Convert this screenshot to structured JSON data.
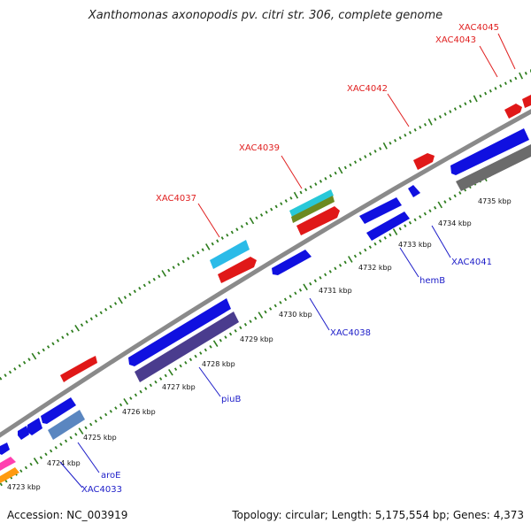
{
  "title": "Xanthomonas axonopodis pv. citri str. 306, complete genome",
  "accession": "Accession: NC_003919",
  "summary": "Topology: circular; Length: 5,175,554 bp; Genes: 4,373",
  "colors": {
    "backbone": "#8a8a8a",
    "tick": "#2e7d1e",
    "plus_label": "#e02020",
    "minus_label": "#1c1cc8"
  },
  "scale_labels": [
    {
      "name": "4723 kbp",
      "kbp": 4723
    },
    {
      "name": "4724 kbp",
      "kbp": 4724
    },
    {
      "name": "4725 kbp",
      "kbp": 4725
    },
    {
      "name": "4726 kbp",
      "kbp": 4726
    },
    {
      "name": "4727 kbp",
      "kbp": 4727
    },
    {
      "name": "4728 kbp",
      "kbp": 4728
    },
    {
      "name": "4729 kbp",
      "kbp": 4729
    },
    {
      "name": "4730 kbp",
      "kbp": 4730
    },
    {
      "name": "4731 kbp",
      "kbp": 4731
    },
    {
      "name": "4732 kbp",
      "kbp": 4732
    },
    {
      "name": "4733 kbp",
      "kbp": 4733
    },
    {
      "name": "4734 kbp",
      "kbp": 4734
    },
    {
      "name": "4735 kbp",
      "kbp": 4735
    }
  ],
  "plus_gene_labels": [
    "XAC4037",
    "XAC4039",
    "XAC4042",
    "XAC4043",
    "XAC4045"
  ],
  "minus_gene_labels": [
    "XAC4033",
    "aroE",
    "piuB",
    "XAC4038",
    "hemB",
    "XAC4041"
  ]
}
